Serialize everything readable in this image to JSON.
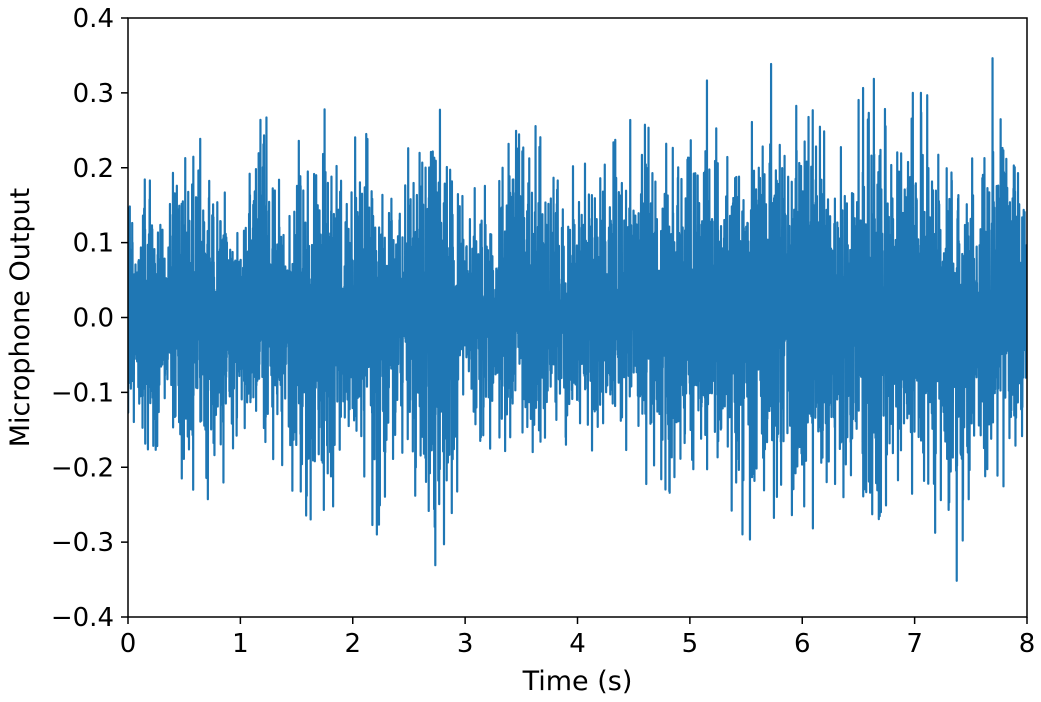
{
  "chart_data": {
    "type": "line",
    "title": "",
    "xlabel": "Time (s)",
    "ylabel": "Microphone Output",
    "xlim": [
      0,
      8
    ],
    "ylim": [
      -0.4,
      0.4
    ],
    "x_ticks": [
      0,
      1,
      2,
      3,
      4,
      5,
      6,
      7,
      8
    ],
    "x_tick_labels": [
      "0",
      "1",
      "2",
      "3",
      "4",
      "5",
      "6",
      "7",
      "8"
    ],
    "y_ticks": [
      -0.4,
      -0.3,
      -0.2,
      -0.1,
      0.0,
      0.1,
      0.2,
      0.3,
      0.4
    ],
    "y_tick_labels": [
      "−0.4",
      "−0.3",
      "−0.2",
      "−0.1",
      "0.0",
      "0.1",
      "0.2",
      "0.3",
      "0.4"
    ],
    "grid": false,
    "legend": "none",
    "series": [
      {
        "color": "#1f77b4",
        "description_of_values": "dense audio waveform; envelope of peaks sampled below",
        "envelope_x": [
          0.0,
          0.1,
          0.2,
          0.3,
          0.5,
          0.6,
          0.7,
          1.0,
          1.2,
          1.4,
          1.6,
          1.7,
          1.9,
          2.1,
          2.2,
          2.4,
          2.7,
          2.75,
          3.0,
          3.3,
          3.5,
          3.7,
          3.9,
          4.2,
          4.5,
          4.9,
          5.1,
          5.3,
          5.45,
          5.7,
          5.9,
          6.0,
          6.3,
          6.6,
          6.7,
          6.9,
          7.1,
          7.4,
          7.5,
          7.7,
          7.9,
          8.0
        ],
        "envelope_max": [
          0.22,
          0.14,
          0.23,
          0.15,
          0.27,
          0.26,
          0.21,
          0.13,
          0.28,
          0.2,
          0.26,
          0.31,
          0.18,
          0.28,
          0.21,
          0.17,
          0.35,
          0.29,
          0.17,
          0.18,
          0.3,
          0.23,
          0.2,
          0.21,
          0.27,
          0.22,
          0.34,
          0.25,
          0.2,
          0.35,
          0.25,
          0.32,
          0.21,
          0.33,
          0.3,
          0.3,
          0.3,
          0.22,
          0.24,
          0.35,
          0.28,
          0.14
        ],
        "envelope_min": [
          -0.15,
          -0.13,
          -0.25,
          -0.14,
          -0.27,
          -0.22,
          -0.3,
          -0.14,
          -0.18,
          -0.2,
          -0.3,
          -0.34,
          -0.2,
          -0.21,
          -0.3,
          -0.16,
          -0.31,
          -0.34,
          -0.19,
          -0.17,
          -0.2,
          -0.16,
          -0.17,
          -0.18,
          -0.2,
          -0.28,
          -0.2,
          -0.21,
          -0.31,
          -0.27,
          -0.26,
          -0.31,
          -0.22,
          -0.31,
          -0.26,
          -0.22,
          -0.26,
          -0.36,
          -0.27,
          -0.23,
          -0.22,
          -0.11
        ]
      }
    ]
  }
}
